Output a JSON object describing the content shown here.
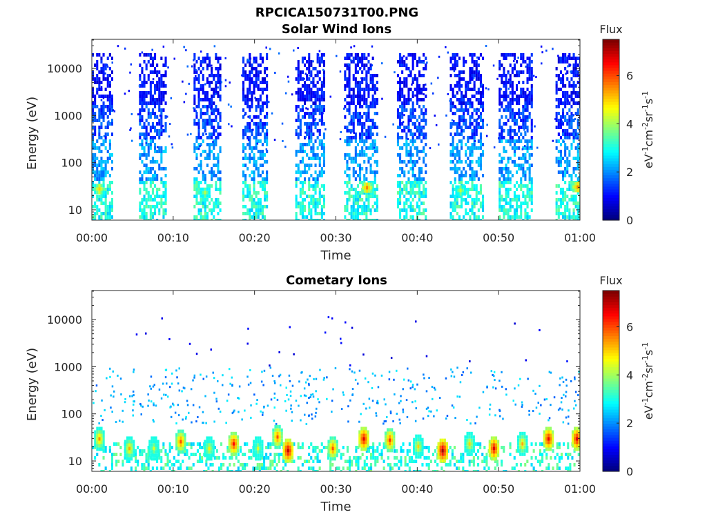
{
  "figure_title": "RPCICA150731T00.PNG",
  "chart_data": [
    {
      "type": "heatmap",
      "title": "Solar Wind Ions",
      "xlabel": "Time",
      "ylabel": "Energy (eV)",
      "x_ticks": [
        "00:00",
        "00:10",
        "00:20",
        "00:30",
        "00:40",
        "00:50",
        "01:00"
      ],
      "x_range_minutes": [
        0,
        60
      ],
      "y_scale": "log",
      "y_ticks": [
        "10",
        "100",
        "1000",
        "10000"
      ],
      "y_range_eV": [
        6,
        42000
      ],
      "colorbar": {
        "title": "Flux",
        "label": "eV-1cm-2sr-1s-1",
        "ticks": [
          "0",
          "2",
          "4",
          "6"
        ],
        "range": [
          0,
          7.5
        ],
        "colormap": "jet"
      },
      "pulses": [
        {
          "start_min": 0.0,
          "end_min": 2.5,
          "warm_spot": {
            "minute": 0.8,
            "energy_eV": 30,
            "flux": 5
          }
        },
        {
          "start_min": 5.8,
          "end_min": 9.0
        },
        {
          "start_min": 12.5,
          "end_min": 15.8,
          "warm_spot": {
            "minute": 13.8,
            "energy_eV": 25,
            "flux": 4.2
          }
        },
        {
          "start_min": 18.5,
          "end_min": 21.5
        },
        {
          "start_min": 25.0,
          "end_min": 28.5
        },
        {
          "start_min": 31.0,
          "end_min": 35.0,
          "warm_spot": {
            "minute": 33.7,
            "energy_eV": 32,
            "flux": 5.6
          }
        },
        {
          "start_min": 37.5,
          "end_min": 41.0
        },
        {
          "start_min": 44.0,
          "end_min": 48.0,
          "warm_spot": {
            "minute": 45.2,
            "energy_eV": 28,
            "flux": 4.3
          }
        },
        {
          "start_min": 50.0,
          "end_min": 54.0
        },
        {
          "start_min": 57.0,
          "end_min": 60.0,
          "warm_spot": {
            "minute": 59.6,
            "energy_eV": 33,
            "flux": 5.6
          }
        }
      ]
    },
    {
      "type": "heatmap",
      "title": "Cometary Ions",
      "xlabel": "Time",
      "ylabel": "Energy (eV)",
      "x_ticks": [
        "00:00",
        "00:10",
        "00:20",
        "00:30",
        "00:40",
        "00:50",
        "01:00"
      ],
      "x_range_minutes": [
        0,
        60
      ],
      "y_scale": "log",
      "y_ticks": [
        "10",
        "100",
        "1000",
        "10000"
      ],
      "y_range_eV": [
        6,
        42000
      ],
      "colorbar": {
        "title": "Flux",
        "label": "eV-1cm-2sr-1s-1",
        "ticks": [
          "0",
          "2",
          "4",
          "6"
        ],
        "range": [
          0,
          7.5
        ],
        "colormap": "jet"
      },
      "hot_spots": [
        {
          "minute": 0.8,
          "energy_eV": 32,
          "flux": 5.5
        },
        {
          "minute": 4.5,
          "energy_eV": 20,
          "flux": 5.3
        },
        {
          "minute": 7.5,
          "energy_eV": 20,
          "flux": 4.5
        },
        {
          "minute": 10.8,
          "energy_eV": 28,
          "flux": 6.0
        },
        {
          "minute": 14.3,
          "energy_eV": 20,
          "flux": 4.8
        },
        {
          "minute": 17.3,
          "energy_eV": 25,
          "flux": 6.5
        },
        {
          "minute": 20.3,
          "energy_eV": 20,
          "flux": 4.5
        },
        {
          "minute": 22.7,
          "energy_eV": 35,
          "flux": 6.0
        },
        {
          "minute": 24.0,
          "energy_eV": 18,
          "flux": 7.0
        },
        {
          "minute": 29.5,
          "energy_eV": 20,
          "flux": 6.0
        },
        {
          "minute": 33.3,
          "energy_eV": 32,
          "flux": 6.8
        },
        {
          "minute": 36.5,
          "energy_eV": 30,
          "flux": 6.2
        },
        {
          "minute": 40.0,
          "energy_eV": 22,
          "flux": 5.0
        },
        {
          "minute": 43.0,
          "energy_eV": 18,
          "flux": 7.2
        },
        {
          "minute": 46.3,
          "energy_eV": 25,
          "flux": 5.0
        },
        {
          "minute": 49.3,
          "energy_eV": 20,
          "flux": 6.8
        },
        {
          "minute": 52.8,
          "energy_eV": 25,
          "flux": 5.3
        },
        {
          "minute": 56.0,
          "energy_eV": 32,
          "flux": 6.7
        },
        {
          "minute": 59.5,
          "energy_eV": 32,
          "flux": 6.8
        }
      ]
    }
  ]
}
